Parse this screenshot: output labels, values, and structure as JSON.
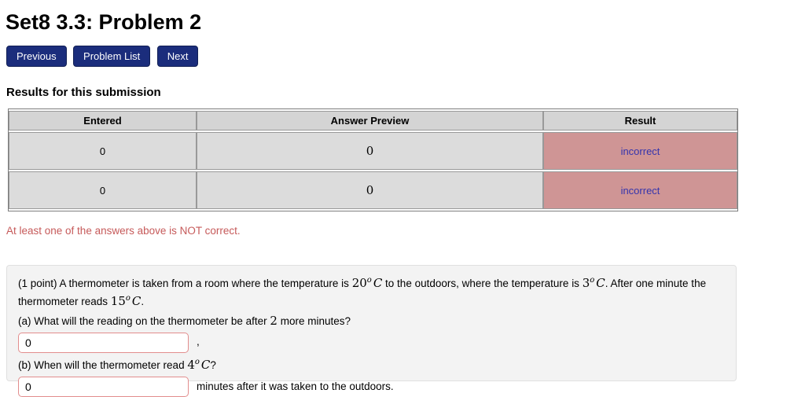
{
  "page": {
    "title": "Set8 3.3: Problem 2"
  },
  "nav": {
    "previous": "Previous",
    "problem_list": "Problem List",
    "next": "Next"
  },
  "results": {
    "heading": "Results for this submission",
    "table": {
      "headers": [
        "Entered",
        "Answer Preview",
        "Result"
      ],
      "rows": [
        {
          "entered": "0",
          "preview": "0",
          "result": "incorrect"
        },
        {
          "entered": "0",
          "preview": "0",
          "result": "incorrect"
        }
      ]
    },
    "warning": "At least one of the answers above is NOT correct."
  },
  "problem": {
    "line1": {
      "t1": "(1 point) A thermometer is taken from a room where the temperature is ",
      "m1n": "20",
      "m1sup": "o",
      "m1c": "C",
      "t2": " to the outdoors, where the temperature is ",
      "m2n": "3",
      "m2sup": "o",
      "m2c": "C",
      "t3": ". After one minute the thermometer reads ",
      "m3n": "15",
      "m3sup": "o",
      "m3c": "C",
      "t4": "."
    },
    "qa": {
      "t1": "(a) What will the reading on the thermometer be after ",
      "m1": "2",
      "t2": " more minutes?"
    },
    "input_a": {
      "value": "0"
    },
    "qa_after": ",",
    "qb": {
      "t1": "(b) When will the thermometer read ",
      "m1n": "4",
      "m1sup": "o",
      "m1c": "C",
      "t2": "?"
    },
    "input_b": {
      "value": "0"
    },
    "qb_after": "minutes after it was taken to the outdoors."
  },
  "colors": {
    "button_blue": "#1b2d7c",
    "header_cell_gray": "#d4d4d4",
    "body_cell_gray": "#dcdcdc",
    "result_pink": "#cf9595",
    "incorrect_blue": "#3434ad",
    "warning_red": "#c65a5a",
    "input_border_red": "#e28d8d",
    "problem_box_gray": "#f3f3f3"
  }
}
